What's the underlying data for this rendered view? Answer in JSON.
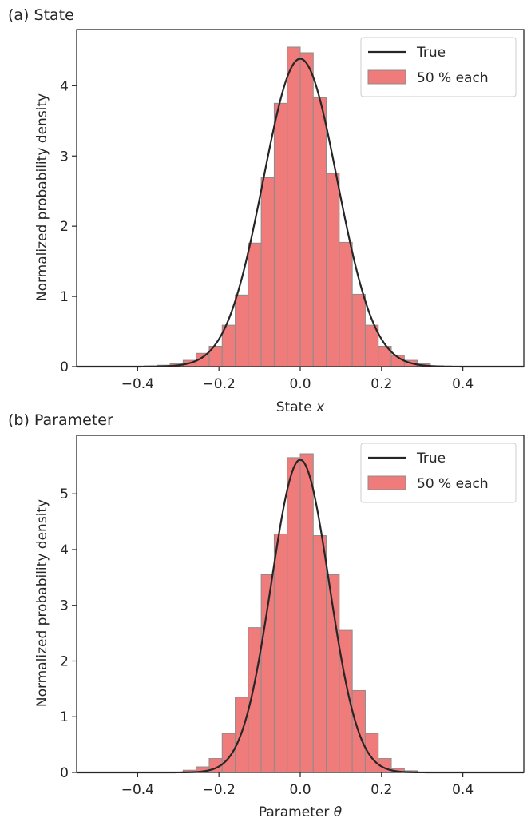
{
  "chart_data": [
    {
      "type": "bar",
      "panel_label": "(a) State",
      "xlabel_text": "State ",
      "xlabel_var": "x",
      "ylabel": "Normalized probability density",
      "xlim": [
        -0.55,
        0.55
      ],
      "ylim": [
        0,
        4.8
      ],
      "x_ticks": [
        -0.4,
        -0.2,
        0.0,
        0.2,
        0.4
      ],
      "x_tick_labels": [
        "−0.4",
        "−0.2",
        "0.0",
        "0.2",
        "0.4"
      ],
      "y_ticks": [
        0,
        1,
        2,
        3,
        4
      ],
      "y_tick_labels": [
        "0",
        "1",
        "2",
        "3",
        "4"
      ],
      "legend": {
        "placement": "top-right",
        "line_label": "True",
        "bar_label": "50 % each"
      },
      "bin_width": 0.032,
      "bin_left_edges": [
        -0.384,
        -0.352,
        -0.32,
        -0.288,
        -0.256,
        -0.224,
        -0.192,
        -0.16,
        -0.128,
        -0.096,
        -0.064,
        -0.032,
        0.0,
        0.032,
        0.064,
        0.096,
        0.128,
        0.16,
        0.192,
        0.224,
        0.256,
        0.288,
        0.32
      ],
      "values": [
        0.01,
        0.02,
        0.04,
        0.09,
        0.19,
        0.29,
        0.59,
        1.02,
        1.76,
        2.69,
        3.75,
        4.55,
        4.47,
        3.83,
        2.75,
        1.77,
        1.03,
        0.59,
        0.29,
        0.16,
        0.09,
        0.04,
        0.01
      ],
      "true_curve": {
        "type": "normal",
        "mean": 0.0,
        "sd": 0.091
      },
      "grid": false,
      "colors": {
        "bar_fill": "#f07b7b",
        "bar_edge": "#8c8c8c",
        "line": "#262626"
      }
    },
    {
      "type": "bar",
      "panel_label": "(b) Parameter",
      "xlabel_text": "Parameter ",
      "xlabel_var": "θ",
      "ylabel": "Normalized probability density",
      "xlim": [
        -0.55,
        0.55
      ],
      "ylim": [
        0,
        6.05
      ],
      "x_ticks": [
        -0.4,
        -0.2,
        0.0,
        0.2,
        0.4
      ],
      "x_tick_labels": [
        "−0.4",
        "−0.2",
        "0.0",
        "0.2",
        "0.4"
      ],
      "y_ticks": [
        0,
        1,
        2,
        3,
        4,
        5
      ],
      "y_tick_labels": [
        "0",
        "1",
        "2",
        "3",
        "4",
        "5"
      ],
      "legend": {
        "placement": "top-right",
        "line_label": "True",
        "bar_label": "50 % each"
      },
      "bin_width": 0.032,
      "bin_left_edges": [
        -0.288,
        -0.256,
        -0.224,
        -0.192,
        -0.16,
        -0.128,
        -0.096,
        -0.064,
        -0.032,
        0.0,
        0.032,
        0.064,
        0.096,
        0.128,
        0.16,
        0.192,
        0.224,
        0.256
      ],
      "values": [
        0.04,
        0.1,
        0.25,
        0.7,
        1.35,
        2.6,
        3.55,
        4.28,
        5.65,
        5.72,
        4.25,
        3.55,
        2.55,
        1.47,
        0.7,
        0.25,
        0.07,
        0.03
      ],
      "true_curve": {
        "type": "normal",
        "mean": 0.0,
        "sd": 0.0711
      },
      "grid": false,
      "colors": {
        "bar_fill": "#f07b7b",
        "bar_edge": "#8c8c8c",
        "line": "#262626"
      }
    }
  ]
}
